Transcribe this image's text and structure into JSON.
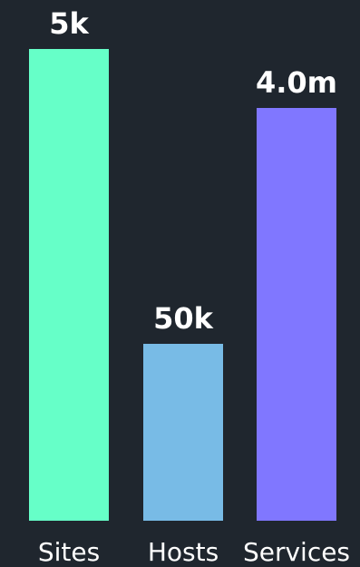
{
  "chart_data": {
    "type": "bar",
    "title": "",
    "xlabel": "",
    "ylabel": "",
    "categories": [
      "Sites",
      "Hosts",
      "Services"
    ],
    "value_labels": [
      "5k",
      "50k",
      "4.0m"
    ],
    "relative_heights": [
      1.0,
      0.375,
      0.875
    ],
    "colors": [
      "#66ffc8",
      "#78bbe6",
      "#8077ff"
    ],
    "grid": false,
    "legend": "none"
  },
  "theme": {
    "background": "#1f262e",
    "text": "#ffffff"
  }
}
